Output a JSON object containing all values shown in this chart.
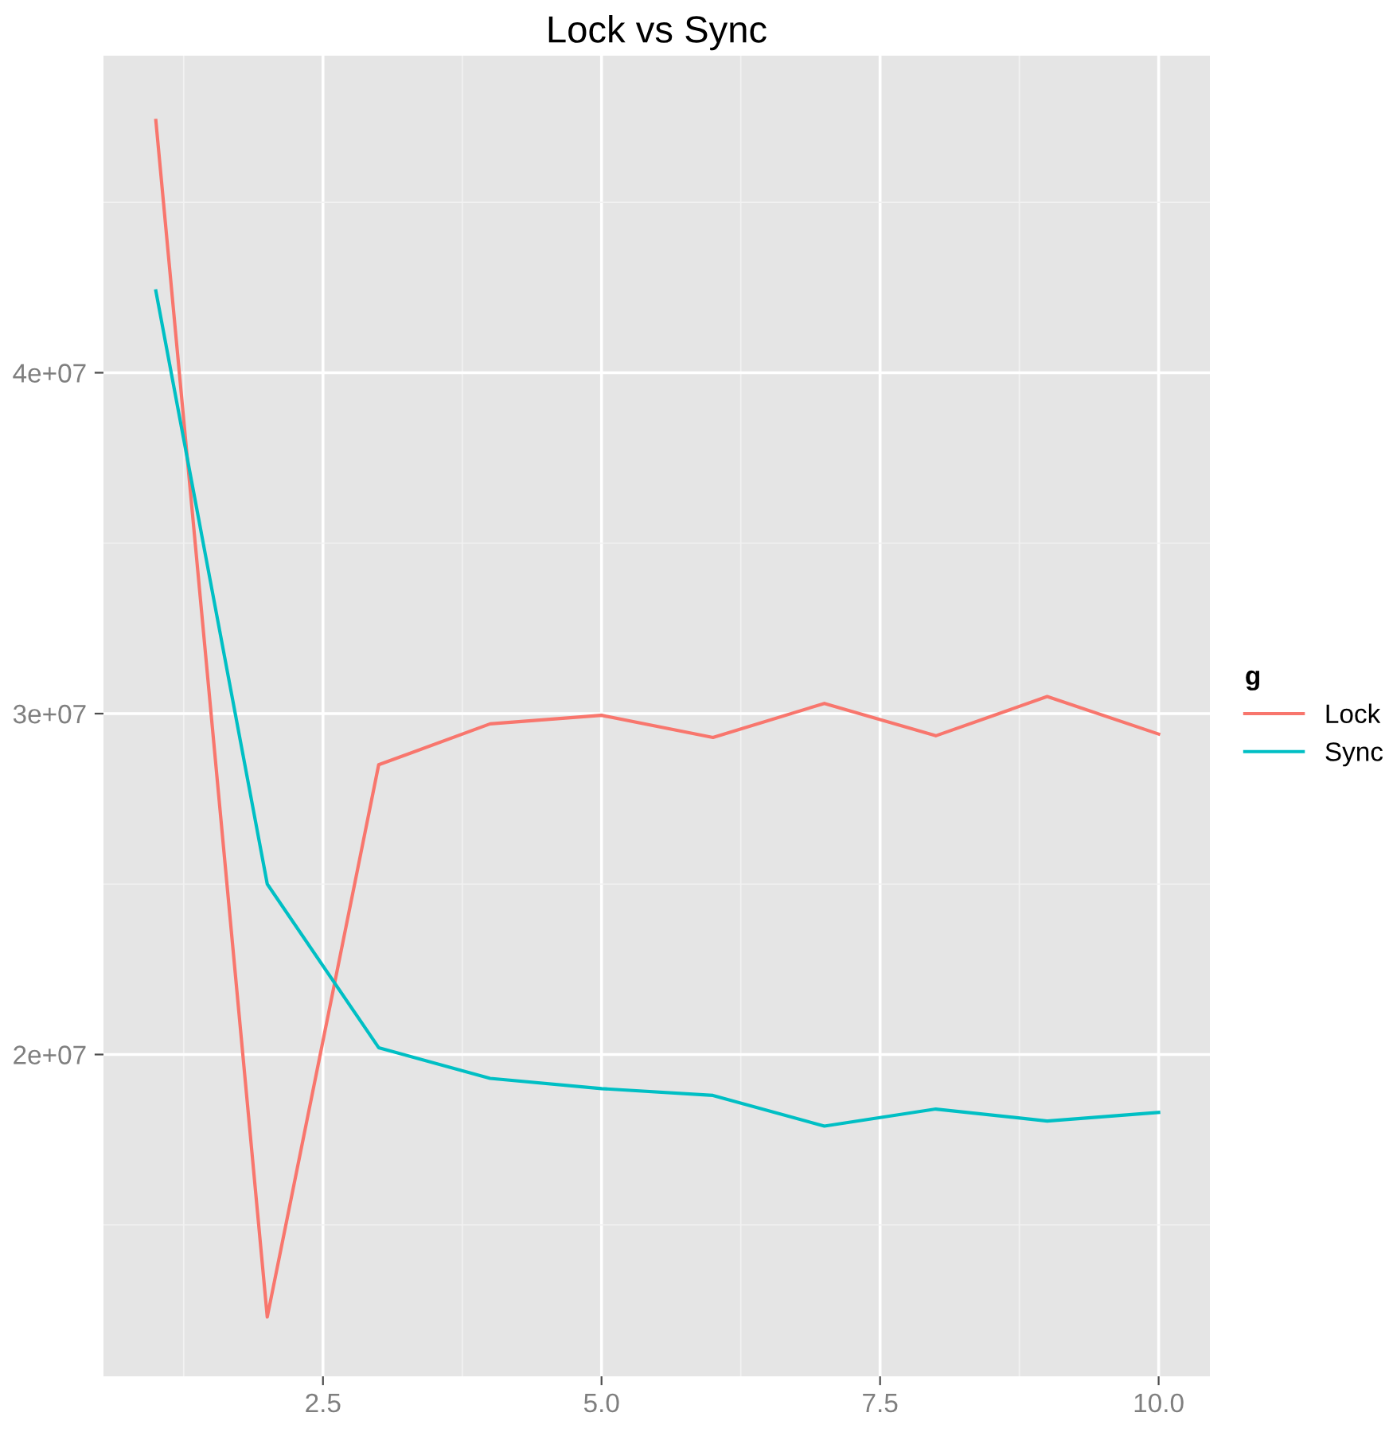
{
  "chart_data": {
    "type": "line",
    "title": "Lock vs Sync",
    "legend_title": "g",
    "legend": "right",
    "grid": true,
    "x": [
      1,
      2,
      3,
      4,
      5,
      6,
      7,
      8,
      9,
      10
    ],
    "series": [
      {
        "name": "Lock",
        "color": "#f8766d",
        "values": [
          47400000,
          12300000,
          28500000,
          29700000,
          29950000,
          29300000,
          30300000,
          29350000,
          30500000,
          29400000
        ]
      },
      {
        "name": "Sync",
        "color": "#00bfc4",
        "values": [
          42400000,
          25000000,
          20200000,
          19300000,
          19000000,
          18800000,
          17900000,
          18400000,
          18050000,
          18300000
        ]
      }
    ],
    "xlim": [
      0.53,
      10.46
    ],
    "xticks": [
      {
        "value": 2.5,
        "label": "2.5"
      },
      {
        "value": 5,
        "label": "5.0"
      },
      {
        "value": 7.5,
        "label": "7.5"
      },
      {
        "value": 10,
        "label": "10.0"
      }
    ],
    "ylim": [
      10560000,
      49300000
    ],
    "yticks": [
      {
        "value": 20000000,
        "label": "2e+07"
      },
      {
        "value": 30000000,
        "label": "3e+07"
      },
      {
        "value": 40000000,
        "label": "4e+07"
      }
    ]
  }
}
